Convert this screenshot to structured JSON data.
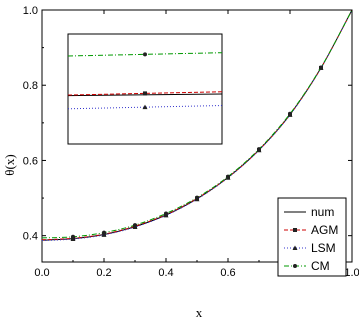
{
  "chart_data": {
    "type": "line",
    "xlabel": "x",
    "ylabel": "θ(x)",
    "xlim": [
      0.0,
      1.0
    ],
    "ylim": [
      0.33,
      1.0
    ],
    "xticks": [
      "0.0",
      "0.2",
      "0.4",
      "0.6",
      "0.8",
      "1.0"
    ],
    "yticks": [
      "0.4",
      "0.6",
      "0.8",
      "1.0"
    ],
    "grid": false,
    "legend_position": "bottom-right",
    "series": [
      {
        "name": "num",
        "style": "solid",
        "marker": "none",
        "color": "#000000",
        "x": [
          0.0,
          0.1,
          0.2,
          0.3,
          0.4,
          0.5,
          0.6,
          0.7,
          0.8,
          0.9,
          1.0
        ],
        "y": [
          0.388,
          0.392,
          0.403,
          0.424,
          0.455,
          0.498,
          0.555,
          0.628,
          0.722,
          0.846,
          1.0
        ]
      },
      {
        "name": "AGM",
        "style": "dashed",
        "marker": "square",
        "color": "#cc0000",
        "x": [
          0.0,
          0.1,
          0.2,
          0.3,
          0.4,
          0.5,
          0.6,
          0.7,
          0.8,
          0.9,
          1.0
        ],
        "y": [
          0.389,
          0.393,
          0.404,
          0.425,
          0.456,
          0.499,
          0.555,
          0.628,
          0.722,
          0.846,
          1.0
        ]
      },
      {
        "name": "LSM",
        "style": "dotted",
        "marker": "triangle",
        "color": "#3333cc",
        "x": [
          0.0,
          0.1,
          0.2,
          0.3,
          0.4,
          0.5,
          0.6,
          0.7,
          0.8,
          0.9,
          1.0
        ],
        "y": [
          0.387,
          0.391,
          0.402,
          0.423,
          0.454,
          0.497,
          0.554,
          0.627,
          0.721,
          0.846,
          1.0
        ]
      },
      {
        "name": "CM",
        "style": "dashdot",
        "marker": "star",
        "color": "#009900",
        "x": [
          0.0,
          0.1,
          0.2,
          0.3,
          0.4,
          0.5,
          0.6,
          0.7,
          0.8,
          0.9,
          1.0
        ],
        "y": [
          0.394,
          0.397,
          0.408,
          0.428,
          0.459,
          0.501,
          0.557,
          0.63,
          0.724,
          0.847,
          1.0
        ]
      }
    ],
    "inset": {
      "xlim": [
        0.0,
        1.0
      ],
      "ylim": [
        0.0,
        1.0
      ],
      "series": [
        {
          "name": "num",
          "x": [
            0.0,
            1.0
          ],
          "y": [
            0.44,
            0.455
          ],
          "marker_x": 0.5,
          "marker_y": 0.448
        },
        {
          "name": "AGM",
          "x": [
            0.0,
            1.0
          ],
          "y": [
            0.445,
            0.475
          ],
          "marker_x": 0.5,
          "marker_y": 0.46
        },
        {
          "name": "LSM",
          "x": [
            0.0,
            1.0
          ],
          "y": [
            0.32,
            0.35
          ],
          "marker_x": 0.5,
          "marker_y": 0.335
        },
        {
          "name": "CM",
          "x": [
            0.0,
            1.0
          ],
          "y": [
            0.8,
            0.83
          ],
          "marker_x": 0.5,
          "marker_y": 0.815
        }
      ]
    }
  }
}
